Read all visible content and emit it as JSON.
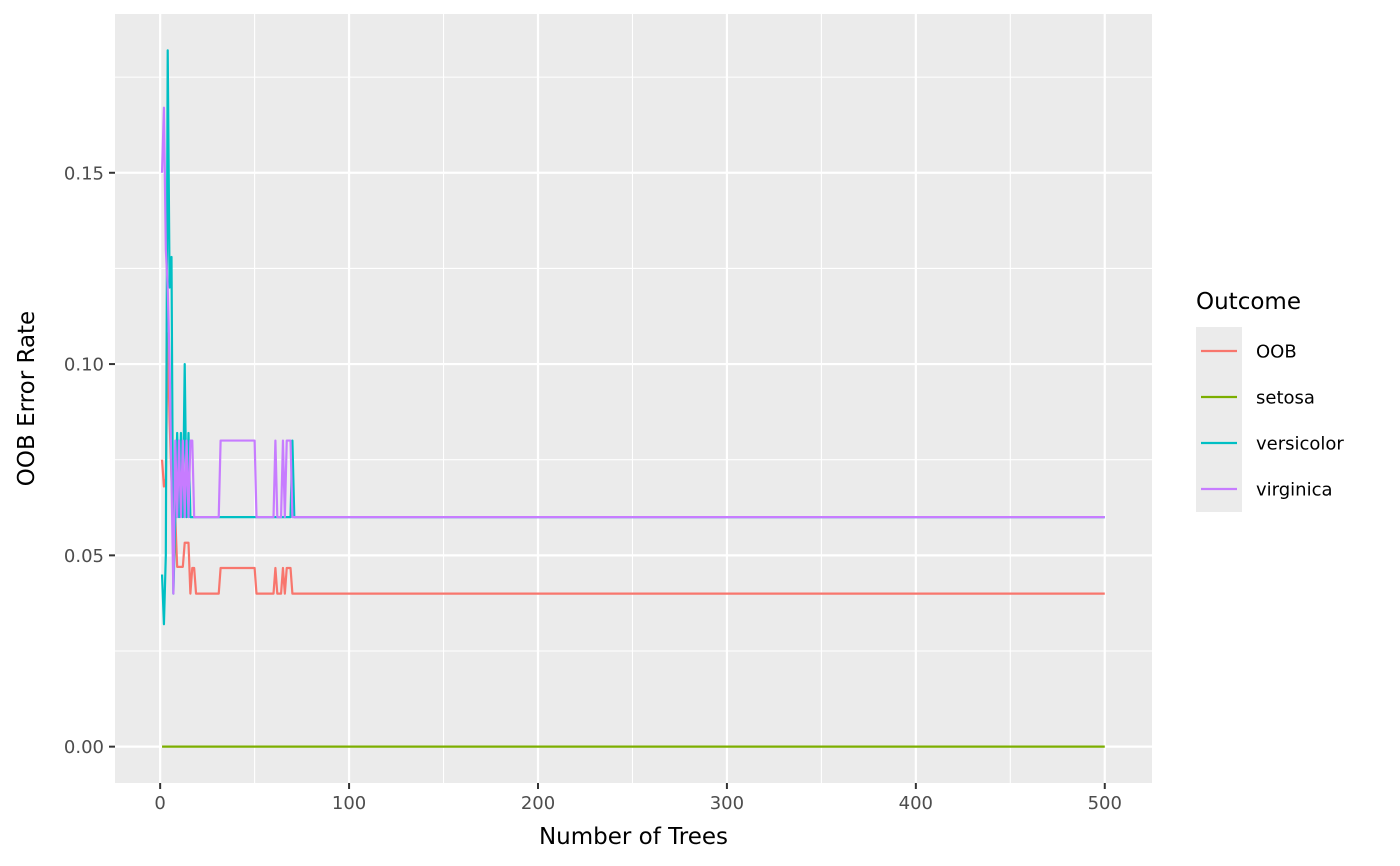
{
  "chart_data": {
    "type": "line",
    "title": "",
    "xlabel": "Number of Trees",
    "ylabel": "OOB Error Rate",
    "xlim": [
      -23.9,
      525
    ],
    "ylim": [
      -0.0095,
      0.1915
    ],
    "x_ticks": [
      0,
      100,
      200,
      300,
      400,
      500
    ],
    "x_tick_labels": [
      "0",
      "100",
      "200",
      "300",
      "400",
      "500"
    ],
    "y_ticks": [
      0,
      0.05,
      0.1,
      0.15
    ],
    "y_tick_labels": [
      "0.00",
      "0.05",
      "0.10",
      "0.15"
    ],
    "x_minor_ticks": [
      50,
      150,
      250,
      350,
      450
    ],
    "y_minor_ticks": [
      0.025,
      0.075,
      0.125,
      0.175
    ],
    "grid": true,
    "legend": {
      "title": "Outcome",
      "placement": "right"
    },
    "series": [
      {
        "name": "OOB",
        "color": "#F8766D",
        "points": [
          [
            1,
            0.075
          ],
          [
            2,
            0.068
          ],
          [
            3,
            0.07
          ],
          [
            4,
            0.108
          ],
          [
            5,
            0.085
          ],
          [
            6,
            0.07
          ],
          [
            7,
            0.058
          ],
          [
            8,
            0.06
          ],
          [
            9,
            0.047
          ],
          [
            10,
            0.047
          ],
          [
            11,
            0.047
          ],
          [
            12,
            0.047
          ],
          [
            13,
            0.0533
          ],
          [
            14,
            0.0533
          ],
          [
            15,
            0.0533
          ],
          [
            16,
            0.04
          ],
          [
            17,
            0.0467
          ],
          [
            18,
            0.0467
          ],
          [
            19,
            0.04
          ],
          [
            31,
            0.04
          ],
          [
            32,
            0.0467
          ],
          [
            50,
            0.0467
          ],
          [
            51,
            0.04
          ],
          [
            60,
            0.04
          ],
          [
            61,
            0.0467
          ],
          [
            62,
            0.04
          ],
          [
            64,
            0.04
          ],
          [
            65,
            0.0467
          ],
          [
            66,
            0.04
          ],
          [
            67,
            0.0467
          ],
          [
            69,
            0.0467
          ],
          [
            70,
            0.04
          ],
          [
            500,
            0.04
          ]
        ]
      },
      {
        "name": "setosa",
        "color": "#7CAE00",
        "points": [
          [
            1,
            0
          ],
          [
            500,
            0
          ]
        ]
      },
      {
        "name": "versicolor",
        "color": "#00BFC4",
        "points": [
          [
            1,
            0.045
          ],
          [
            2,
            0.032
          ],
          [
            3,
            0.05
          ],
          [
            4,
            0.182
          ],
          [
            5,
            0.12
          ],
          [
            6,
            0.128
          ],
          [
            7,
            0.04
          ],
          [
            8,
            0.06
          ],
          [
            9,
            0.082
          ],
          [
            10,
            0.06
          ],
          [
            11,
            0.082
          ],
          [
            12,
            0.06
          ],
          [
            13,
            0.1
          ],
          [
            14,
            0.06
          ],
          [
            15,
            0.082
          ],
          [
            16,
            0.06
          ],
          [
            69,
            0.06
          ],
          [
            70,
            0.08
          ],
          [
            71,
            0.06
          ],
          [
            500,
            0.06
          ]
        ]
      },
      {
        "name": "virginica",
        "color": "#C77CFF",
        "points": [
          [
            1,
            0.15
          ],
          [
            2,
            0.167
          ],
          [
            3,
            0.13
          ],
          [
            4,
            0.12
          ],
          [
            5,
            0.1
          ],
          [
            6,
            0.07
          ],
          [
            7,
            0.04
          ],
          [
            8,
            0.08
          ],
          [
            9,
            0.06
          ],
          [
            10,
            0.08
          ],
          [
            11,
            0.06
          ],
          [
            12,
            0.08
          ],
          [
            13,
            0.06
          ],
          [
            14,
            0.08
          ],
          [
            15,
            0.06
          ],
          [
            16,
            0.08
          ],
          [
            17,
            0.08
          ],
          [
            18,
            0.06
          ],
          [
            31,
            0.06
          ],
          [
            32,
            0.08
          ],
          [
            50,
            0.08
          ],
          [
            51,
            0.06
          ],
          [
            60,
            0.06
          ],
          [
            61,
            0.08
          ],
          [
            62,
            0.06
          ],
          [
            64,
            0.06
          ],
          [
            65,
            0.08
          ],
          [
            66,
            0.06
          ],
          [
            67,
            0.08
          ],
          [
            69,
            0.08
          ],
          [
            70,
            0.06
          ],
          [
            500,
            0.06
          ]
        ]
      }
    ]
  }
}
